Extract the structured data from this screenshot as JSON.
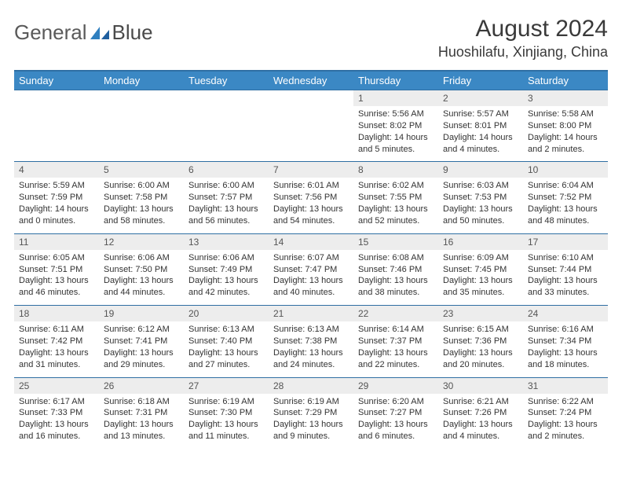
{
  "brand": {
    "part1": "General",
    "part2": "Blue"
  },
  "title": "August 2024",
  "location": "Huoshilafu, Xinjiang, China",
  "colors": {
    "header_bg": "#3b88c4",
    "header_border": "#2f6fa3",
    "daynum_bg": "#ededed",
    "text": "#333333",
    "logo_blue": "#2f7fbf"
  },
  "day_headers": [
    "Sunday",
    "Monday",
    "Tuesday",
    "Wednesday",
    "Thursday",
    "Friday",
    "Saturday"
  ],
  "weeks": [
    [
      null,
      null,
      null,
      null,
      {
        "n": "1",
        "sr": "5:56 AM",
        "ss": "8:02 PM",
        "dl": "14 hours and 5 minutes."
      },
      {
        "n": "2",
        "sr": "5:57 AM",
        "ss": "8:01 PM",
        "dl": "14 hours and 4 minutes."
      },
      {
        "n": "3",
        "sr": "5:58 AM",
        "ss": "8:00 PM",
        "dl": "14 hours and 2 minutes."
      }
    ],
    [
      {
        "n": "4",
        "sr": "5:59 AM",
        "ss": "7:59 PM",
        "dl": "14 hours and 0 minutes."
      },
      {
        "n": "5",
        "sr": "6:00 AM",
        "ss": "7:58 PM",
        "dl": "13 hours and 58 minutes."
      },
      {
        "n": "6",
        "sr": "6:00 AM",
        "ss": "7:57 PM",
        "dl": "13 hours and 56 minutes."
      },
      {
        "n": "7",
        "sr": "6:01 AM",
        "ss": "7:56 PM",
        "dl": "13 hours and 54 minutes."
      },
      {
        "n": "8",
        "sr": "6:02 AM",
        "ss": "7:55 PM",
        "dl": "13 hours and 52 minutes."
      },
      {
        "n": "9",
        "sr": "6:03 AM",
        "ss": "7:53 PM",
        "dl": "13 hours and 50 minutes."
      },
      {
        "n": "10",
        "sr": "6:04 AM",
        "ss": "7:52 PM",
        "dl": "13 hours and 48 minutes."
      }
    ],
    [
      {
        "n": "11",
        "sr": "6:05 AM",
        "ss": "7:51 PM",
        "dl": "13 hours and 46 minutes."
      },
      {
        "n": "12",
        "sr": "6:06 AM",
        "ss": "7:50 PM",
        "dl": "13 hours and 44 minutes."
      },
      {
        "n": "13",
        "sr": "6:06 AM",
        "ss": "7:49 PM",
        "dl": "13 hours and 42 minutes."
      },
      {
        "n": "14",
        "sr": "6:07 AM",
        "ss": "7:47 PM",
        "dl": "13 hours and 40 minutes."
      },
      {
        "n": "15",
        "sr": "6:08 AM",
        "ss": "7:46 PM",
        "dl": "13 hours and 38 minutes."
      },
      {
        "n": "16",
        "sr": "6:09 AM",
        "ss": "7:45 PM",
        "dl": "13 hours and 35 minutes."
      },
      {
        "n": "17",
        "sr": "6:10 AM",
        "ss": "7:44 PM",
        "dl": "13 hours and 33 minutes."
      }
    ],
    [
      {
        "n": "18",
        "sr": "6:11 AM",
        "ss": "7:42 PM",
        "dl": "13 hours and 31 minutes."
      },
      {
        "n": "19",
        "sr": "6:12 AM",
        "ss": "7:41 PM",
        "dl": "13 hours and 29 minutes."
      },
      {
        "n": "20",
        "sr": "6:13 AM",
        "ss": "7:40 PM",
        "dl": "13 hours and 27 minutes."
      },
      {
        "n": "21",
        "sr": "6:13 AM",
        "ss": "7:38 PM",
        "dl": "13 hours and 24 minutes."
      },
      {
        "n": "22",
        "sr": "6:14 AM",
        "ss": "7:37 PM",
        "dl": "13 hours and 22 minutes."
      },
      {
        "n": "23",
        "sr": "6:15 AM",
        "ss": "7:36 PM",
        "dl": "13 hours and 20 minutes."
      },
      {
        "n": "24",
        "sr": "6:16 AM",
        "ss": "7:34 PM",
        "dl": "13 hours and 18 minutes."
      }
    ],
    [
      {
        "n": "25",
        "sr": "6:17 AM",
        "ss": "7:33 PM",
        "dl": "13 hours and 16 minutes."
      },
      {
        "n": "26",
        "sr": "6:18 AM",
        "ss": "7:31 PM",
        "dl": "13 hours and 13 minutes."
      },
      {
        "n": "27",
        "sr": "6:19 AM",
        "ss": "7:30 PM",
        "dl": "13 hours and 11 minutes."
      },
      {
        "n": "28",
        "sr": "6:19 AM",
        "ss": "7:29 PM",
        "dl": "13 hours and 9 minutes."
      },
      {
        "n": "29",
        "sr": "6:20 AM",
        "ss": "7:27 PM",
        "dl": "13 hours and 6 minutes."
      },
      {
        "n": "30",
        "sr": "6:21 AM",
        "ss": "7:26 PM",
        "dl": "13 hours and 4 minutes."
      },
      {
        "n": "31",
        "sr": "6:22 AM",
        "ss": "7:24 PM",
        "dl": "13 hours and 2 minutes."
      }
    ]
  ],
  "labels": {
    "sunrise": "Sunrise:",
    "sunset": "Sunset:",
    "daylight": "Daylight:"
  }
}
